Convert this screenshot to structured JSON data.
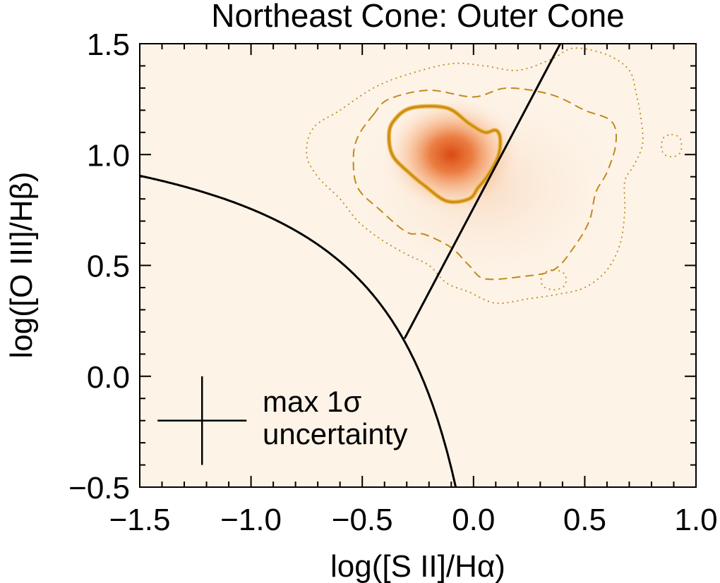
{
  "chart_data": {
    "type": "scatter",
    "title": "Northeast Cone: Outer Cone",
    "xlabel": "log([S II]/Hα)",
    "ylabel": "log([O III]/Hβ)",
    "xlim": [
      -1.5,
      1.0
    ],
    "ylim": [
      -0.5,
      1.5
    ],
    "x_ticks": [
      -1.5,
      -1.0,
      -0.5,
      0.0,
      0.5,
      1.0
    ],
    "x_tick_labels": [
      "−1.5",
      "−1.0",
      "−0.5",
      "0.0",
      "0.5",
      "1.0"
    ],
    "y_ticks": [
      -0.5,
      0.0,
      0.5,
      1.0,
      1.5
    ],
    "y_tick_labels": [
      "−0.5",
      "0.0",
      "0.5",
      "1.0",
      "1.5"
    ],
    "density_peak": {
      "x": -0.1,
      "y": 1.0
    },
    "contours": [
      {
        "style": "solid",
        "points": [
          [
            -0.36,
            1.15
          ],
          [
            -0.28,
            1.21
          ],
          [
            -0.12,
            1.21
          ],
          [
            -0.02,
            1.14
          ],
          [
            0.05,
            1.1
          ],
          [
            0.1,
            1.11
          ],
          [
            0.12,
            1.07
          ],
          [
            0.11,
            0.99
          ],
          [
            0.06,
            0.9
          ],
          [
            0.02,
            0.85
          ],
          [
            -0.02,
            0.8
          ],
          [
            -0.12,
            0.79
          ],
          [
            -0.22,
            0.86
          ],
          [
            -0.28,
            0.91
          ],
          [
            -0.36,
            0.99
          ],
          [
            -0.38,
            1.08
          ]
        ]
      },
      {
        "style": "dashed",
        "points": [
          [
            -0.45,
            1.18
          ],
          [
            -0.38,
            1.25
          ],
          [
            -0.2,
            1.29
          ],
          [
            0,
            1.26
          ],
          [
            0.15,
            1.3
          ],
          [
            0.35,
            1.27
          ],
          [
            0.5,
            1.2
          ],
          [
            0.62,
            1.15
          ],
          [
            0.64,
            1.05
          ],
          [
            0.6,
            0.92
          ],
          [
            0.55,
            0.83
          ],
          [
            0.52,
            0.7
          ],
          [
            0.45,
            0.58
          ],
          [
            0.36,
            0.48
          ],
          [
            0.22,
            0.45
          ],
          [
            0.05,
            0.44
          ],
          [
            -0.02,
            0.5
          ],
          [
            -0.1,
            0.58
          ],
          [
            -0.22,
            0.64
          ],
          [
            -0.3,
            0.65
          ],
          [
            -0.42,
            0.75
          ],
          [
            -0.52,
            0.85
          ],
          [
            -0.54,
            0.98
          ],
          [
            -0.52,
            1.08
          ]
        ]
      },
      {
        "style": "dotted",
        "points": [
          [
            -0.6,
            1.2
          ],
          [
            -0.45,
            1.3
          ],
          [
            -0.3,
            1.36
          ],
          [
            -0.1,
            1.41
          ],
          [
            0.05,
            1.4
          ],
          [
            0.2,
            1.38
          ],
          [
            0.35,
            1.43
          ],
          [
            0.45,
            1.48
          ],
          [
            0.6,
            1.45
          ],
          [
            0.7,
            1.38
          ],
          [
            0.73,
            1.28
          ],
          [
            0.75,
            1.18
          ],
          [
            0.76,
            1.05
          ],
          [
            0.72,
            0.95
          ],
          [
            0.68,
            0.88
          ],
          [
            0.68,
            0.75
          ],
          [
            0.66,
            0.6
          ],
          [
            0.6,
            0.48
          ],
          [
            0.5,
            0.4
          ],
          [
            0.38,
            0.37
          ],
          [
            0.25,
            0.35
          ],
          [
            0.1,
            0.33
          ],
          [
            -0.02,
            0.38
          ],
          [
            -0.12,
            0.42
          ],
          [
            -0.2,
            0.5
          ],
          [
            -0.3,
            0.55
          ],
          [
            -0.42,
            0.62
          ],
          [
            -0.52,
            0.7
          ],
          [
            -0.6,
            0.8
          ],
          [
            -0.7,
            0.9
          ],
          [
            -0.75,
            1.0
          ],
          [
            -0.72,
            1.12
          ]
        ]
      },
      {
        "style": "dotted",
        "points": [
          [
            0.89,
            1.09
          ],
          [
            0.93,
            1.07
          ],
          [
            0.93,
            1.01
          ],
          [
            0.89,
            0.99
          ],
          [
            0.85,
            1.01
          ],
          [
            0.85,
            1.07
          ]
        ]
      },
      {
        "style": "dotted",
        "points": [
          [
            0.36,
            0.48
          ],
          [
            0.41,
            0.46
          ],
          [
            0.41,
            0.41
          ],
          [
            0.36,
            0.39
          ],
          [
            0.31,
            0.41
          ],
          [
            0.31,
            0.46
          ]
        ]
      }
    ],
    "reference_lines": [
      {
        "name": "Kewley 2001 maximum starburst line",
        "formula": "0.72/(x-0.32)+1.30"
      },
      {
        "name": "Seyfert/LINER division",
        "points": [
          [
            -0.31,
            0.17
          ],
          [
            0.39,
            1.5
          ]
        ]
      }
    ],
    "legend": {
      "line1": "max 1σ",
      "line2": "uncertainty",
      "placement": "bottom-left",
      "error_bar_center": {
        "x": -1.22,
        "y": -0.2
      },
      "x_half_width": 0.2,
      "y_half_width": 0.2
    },
    "colors": {
      "background": "#fdf3e7",
      "density_peak": "#d84a10",
      "contour": "#c08a1c",
      "contour_solid_glow": "#f0b038",
      "line": "#000000"
    }
  }
}
